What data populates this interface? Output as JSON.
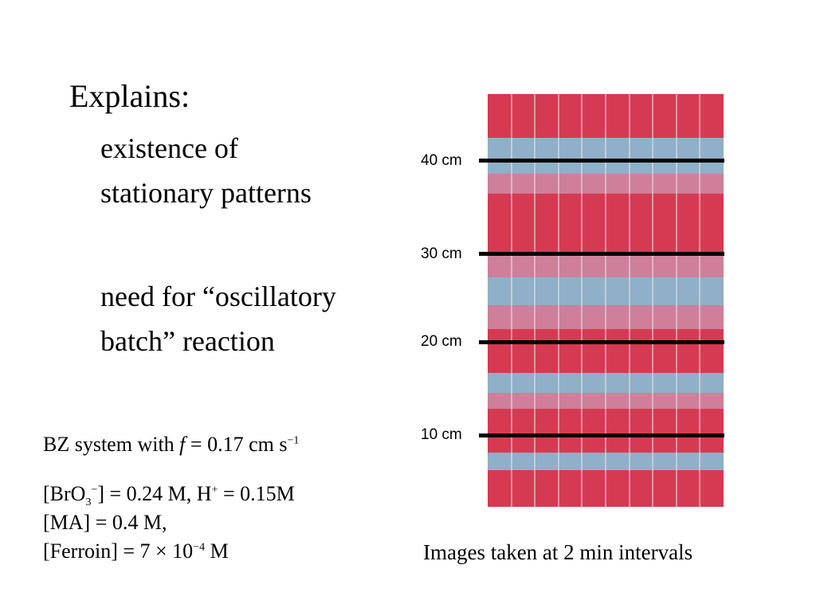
{
  "slide": {
    "heading": "Explains:",
    "bullets": [
      {
        "lines": [
          "existence of",
          "stationary patterns"
        ]
      },
      {
        "lines": [
          "need for “oscillatory",
          "batch” reaction"
        ]
      }
    ],
    "system": {
      "prefix": "BZ system with ",
      "var": "f",
      "mid": " = 0.17 cm s",
      "sup": "−1"
    },
    "concentrations": {
      "bro3_a": "[BrO",
      "bro3_sub": "3",
      "bro3_sup": "−",
      "bro3_b": "] = 0.24 M, H",
      "h_sup": "+",
      "h_b": " = 0.15M",
      "ma": "[MA] = 0.4 M,",
      "ferroin_a": "[Ferroin] = 7 × 10",
      "ferroin_sup": "−4",
      "ferroin_b": " M"
    },
    "figure": {
      "caption": "Images taken at 2 min intervals",
      "columns": 10,
      "markers": [
        {
          "label": "40 cm"
        },
        {
          "label": "30 cm"
        },
        {
          "label": "20 cm"
        },
        {
          "label": "10 cm"
        }
      ],
      "colors": {
        "red": "#d63a52",
        "blue": "#8fb0c8",
        "pink": "#cf7f9a"
      }
    }
  }
}
